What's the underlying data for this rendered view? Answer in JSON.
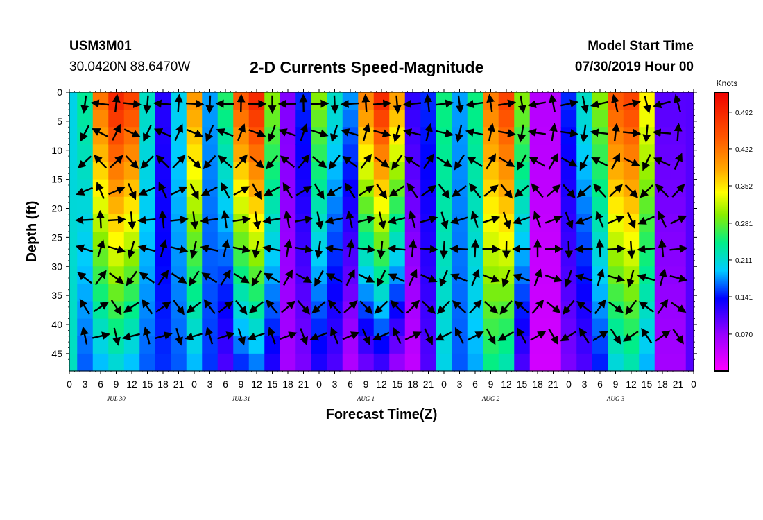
{
  "header": {
    "station": "USM3M01",
    "coords": "30.0420N 88.6470W",
    "title": "2-D Currents Speed-Magnitude",
    "model_start_label": "Model Start Time",
    "model_start_value": "07/30/2019 Hour 00"
  },
  "chart_data": {
    "type": "heatmap",
    "title": "2-D Currents Speed-Magnitude",
    "xlabel": "Forecast Time(Z)",
    "ylabel": "Depth (ft)",
    "x_hours_range": [
      0,
      120
    ],
    "x_tick_labels": [
      "0",
      "3",
      "6",
      "9",
      "12",
      "15",
      "18",
      "21",
      "0",
      "3",
      "6",
      "9",
      "12",
      "15",
      "18",
      "21",
      "0",
      "3",
      "6",
      "9",
      "12",
      "15",
      "18",
      "21",
      "0",
      "3",
      "6",
      "9",
      "12",
      "15",
      "18",
      "21",
      "0",
      "3",
      "6",
      "9",
      "12",
      "15",
      "18",
      "21",
      "0"
    ],
    "day_labels": [
      "JUL 30",
      "JUL 31",
      "AUG 1",
      "AUG 2",
      "AUG 3"
    ],
    "y_range": [
      0,
      48
    ],
    "y_reversed": true,
    "y_ticks": [
      0,
      5,
      10,
      15,
      20,
      25,
      30,
      35,
      40,
      45
    ],
    "colorbar": {
      "unit_label": "Knots",
      "tick_values": [
        0.492,
        0.422,
        0.352,
        0.281,
        0.211,
        0.141,
        0.07
      ],
      "tick_labels": [
        "0.492",
        "0.422",
        "0.352",
        "0.281",
        "0.211",
        "0.141",
        "0.070"
      ],
      "range": [
        0.0,
        0.53
      ]
    },
    "speed_hours": [
      0,
      3,
      6,
      9,
      12,
      15,
      18,
      21,
      24,
      27,
      30,
      33,
      36,
      39,
      42,
      45,
      48,
      51,
      54,
      57,
      60,
      63,
      66,
      69,
      72,
      75,
      78,
      81,
      84,
      87,
      90,
      93,
      96,
      99,
      102,
      105,
      108,
      111,
      114,
      117,
      120
    ],
    "speed_surface_knots": [
      0.2,
      0.24,
      0.43,
      0.5,
      0.47,
      0.22,
      0.12,
      0.2,
      0.4,
      0.18,
      0.26,
      0.45,
      0.5,
      0.3,
      0.08,
      0.15,
      0.3,
      0.22,
      0.18,
      0.42,
      0.5,
      0.4,
      0.12,
      0.15,
      0.25,
      0.18,
      0.25,
      0.42,
      0.47,
      0.3,
      0.05,
      0.05,
      0.15,
      0.22,
      0.3,
      0.45,
      0.47,
      0.35,
      0.1,
      0.1,
      0.1
    ],
    "speed_bottom_knots": [
      0.22,
      0.16,
      0.18,
      0.2,
      0.18,
      0.16,
      0.15,
      0.16,
      0.18,
      0.15,
      0.1,
      0.14,
      0.16,
      0.12,
      0.06,
      0.08,
      0.12,
      0.1,
      0.05,
      0.08,
      0.1,
      0.06,
      0.04,
      0.1,
      0.2,
      0.16,
      0.18,
      0.24,
      0.22,
      0.1,
      0.03,
      0.03,
      0.08,
      0.1,
      0.14,
      0.2,
      0.22,
      0.18,
      0.06,
      0.06,
      0.1
    ]
  }
}
